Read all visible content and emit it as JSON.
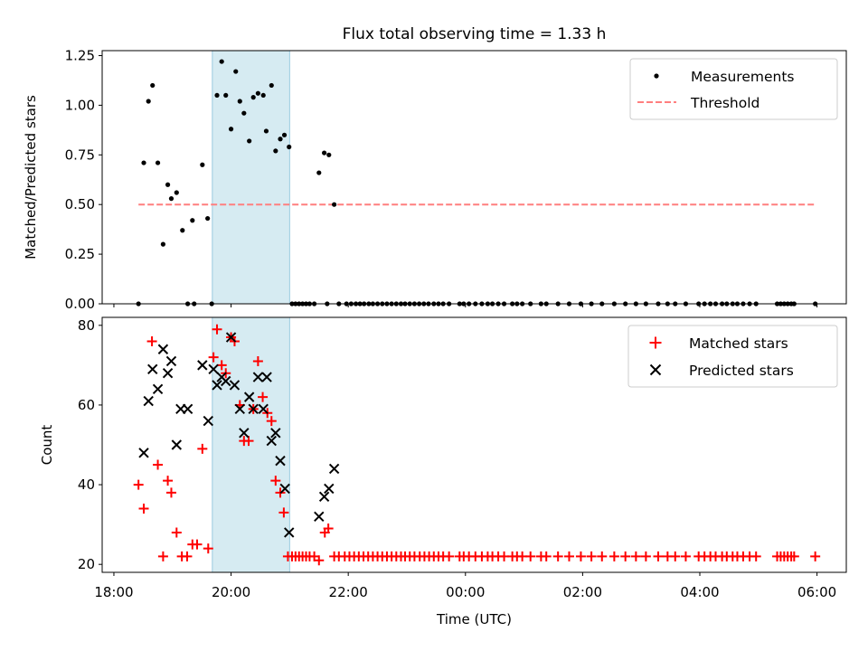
{
  "chart_data": {
    "title": "Flux total observing time = 1.33 h",
    "x_axis": {
      "label": "Time (UTC)",
      "unit": "hours since 18:00",
      "range": [
        -0.2,
        12.5
      ],
      "ticks": [
        {
          "value": 0,
          "label": "18:00"
        },
        {
          "value": 2,
          "label": "20:00"
        },
        {
          "value": 4,
          "label": "22:00"
        },
        {
          "value": 6,
          "label": "00:00"
        },
        {
          "value": 8,
          "label": "02:00"
        },
        {
          "value": 10,
          "label": "04:00"
        },
        {
          "value": 12,
          "label": "06:00"
        }
      ]
    },
    "highlight_span": {
      "x_start": 1.68,
      "x_end": 3.0,
      "color": "#add8e6"
    },
    "top_panel": {
      "type": "scatter",
      "ylabel": "Matched/Predicted stars",
      "ylim": [
        0,
        1.275
      ],
      "yticks": [
        "0.00",
        "0.25",
        "0.50",
        "0.75",
        "1.00",
        "1.25"
      ],
      "legend": [
        "Measurements",
        "Threshold"
      ],
      "threshold": {
        "value": 0.5,
        "x_start": 0.42,
        "x_end": 11.96,
        "color": "#ff7f7f"
      },
      "measurements": [
        [
          0.42,
          0.0
        ],
        [
          0.51,
          0.71
        ],
        [
          0.59,
          1.02
        ],
        [
          0.66,
          1.1
        ],
        [
          0.75,
          0.71
        ],
        [
          0.84,
          0.3
        ],
        [
          0.92,
          0.6
        ],
        [
          0.98,
          0.53
        ],
        [
          1.07,
          0.56
        ],
        [
          1.17,
          0.37
        ],
        [
          1.26,
          0.0
        ],
        [
          1.34,
          0.42
        ],
        [
          1.37,
          0.0
        ],
        [
          1.51,
          0.7
        ],
        [
          1.6,
          0.43
        ],
        [
          1.67,
          0.0
        ],
        [
          1.76,
          1.05
        ],
        [
          1.84,
          1.22
        ],
        [
          1.91,
          1.05
        ],
        [
          2.0,
          0.88
        ],
        [
          2.08,
          1.17
        ],
        [
          2.15,
          1.02
        ],
        [
          2.22,
          0.96
        ],
        [
          2.31,
          0.82
        ],
        [
          2.38,
          1.04
        ],
        [
          2.46,
          1.06
        ],
        [
          2.55,
          1.05
        ],
        [
          2.6,
          0.87
        ],
        [
          2.69,
          1.1
        ],
        [
          2.76,
          0.77
        ],
        [
          2.84,
          0.83
        ],
        [
          2.91,
          0.85
        ],
        [
          2.99,
          0.79
        ],
        [
          3.04,
          0.0
        ],
        [
          3.1,
          0.0
        ],
        [
          3.16,
          0.0
        ],
        [
          3.22,
          0.0
        ],
        [
          3.28,
          0.0
        ],
        [
          3.34,
          0.0
        ],
        [
          3.42,
          0.0
        ],
        [
          3.5,
          0.66
        ],
        [
          3.59,
          0.76
        ],
        [
          3.64,
          0.0
        ],
        [
          3.67,
          0.75
        ],
        [
          3.76,
          0.5
        ],
        [
          3.84,
          0.0
        ],
        [
          3.97,
          0.0
        ],
        [
          4.05,
          0.0
        ],
        [
          4.13,
          0.0
        ],
        [
          4.2,
          0.0
        ],
        [
          4.27,
          0.0
        ],
        [
          4.35,
          0.0
        ],
        [
          4.42,
          0.0
        ],
        [
          4.5,
          0.0
        ],
        [
          4.58,
          0.0
        ],
        [
          4.66,
          0.0
        ],
        [
          4.74,
          0.0
        ],
        [
          4.82,
          0.0
        ],
        [
          4.9,
          0.0
        ],
        [
          4.97,
          0.0
        ],
        [
          5.05,
          0.0
        ],
        [
          5.13,
          0.0
        ],
        [
          5.21,
          0.0
        ],
        [
          5.29,
          0.0
        ],
        [
          5.37,
          0.0
        ],
        [
          5.46,
          0.0
        ],
        [
          5.54,
          0.0
        ],
        [
          5.62,
          0.0
        ],
        [
          5.72,
          0.0
        ],
        [
          5.9,
          0.0
        ],
        [
          5.97,
          0.0
        ],
        [
          6.06,
          0.0
        ],
        [
          6.17,
          0.0
        ],
        [
          6.28,
          0.0
        ],
        [
          6.38,
          0.0
        ],
        [
          6.46,
          0.0
        ],
        [
          6.56,
          0.0
        ],
        [
          6.66,
          0.0
        ],
        [
          6.8,
          0.0
        ],
        [
          6.88,
          0.0
        ],
        [
          6.97,
          0.0
        ],
        [
          7.11,
          0.0
        ],
        [
          7.29,
          0.0
        ],
        [
          7.38,
          0.0
        ],
        [
          7.58,
          0.0
        ],
        [
          7.77,
          0.0
        ],
        [
          7.97,
          0.0
        ],
        [
          8.15,
          0.0
        ],
        [
          8.33,
          0.0
        ],
        [
          8.54,
          0.0
        ],
        [
          8.73,
          0.0
        ],
        [
          8.91,
          0.0
        ],
        [
          9.08,
          0.0
        ],
        [
          9.29,
          0.0
        ],
        [
          9.45,
          0.0
        ],
        [
          9.58,
          0.0
        ],
        [
          9.76,
          0.0
        ],
        [
          9.98,
          0.0
        ],
        [
          10.08,
          0.0
        ],
        [
          10.18,
          0.0
        ],
        [
          10.27,
          0.0
        ],
        [
          10.38,
          0.0
        ],
        [
          10.46,
          0.0
        ],
        [
          10.56,
          0.0
        ],
        [
          10.64,
          0.0
        ],
        [
          10.74,
          0.0
        ],
        [
          10.85,
          0.0
        ],
        [
          10.96,
          0.0
        ],
        [
          11.32,
          0.0
        ],
        [
          11.38,
          0.0
        ],
        [
          11.44,
          0.0
        ],
        [
          11.5,
          0.0
        ],
        [
          11.56,
          0.0
        ],
        [
          11.61,
          0.0
        ],
        [
          11.97,
          0.0
        ]
      ]
    },
    "bottom_panel": {
      "type": "scatter",
      "ylabel": "Count",
      "ylim": [
        18,
        82
      ],
      "yticks": [
        "20",
        "40",
        "60",
        "80"
      ],
      "legend": [
        "Matched stars",
        "Predicted stars"
      ],
      "series": [
        {
          "name": "Matched stars",
          "marker": "plus",
          "color": "#ff0000",
          "points": [
            [
              0.42,
              40
            ],
            [
              0.51,
              34
            ],
            [
              0.65,
              76
            ],
            [
              0.75,
              45
            ],
            [
              0.84,
              22
            ],
            [
              0.92,
              41
            ],
            [
              0.98,
              38
            ],
            [
              1.07,
              28
            ],
            [
              1.16,
              22
            ],
            [
              1.25,
              22
            ],
            [
              1.34,
              25
            ],
            [
              1.42,
              25
            ],
            [
              1.51,
              49
            ],
            [
              1.61,
              24
            ],
            [
              1.7,
              72
            ],
            [
              1.76,
              79
            ],
            [
              1.84,
              70
            ],
            [
              1.91,
              68
            ],
            [
              2.0,
              77
            ],
            [
              2.06,
              76
            ],
            [
              2.15,
              60
            ],
            [
              2.22,
              51
            ],
            [
              2.3,
              51
            ],
            [
              2.38,
              59
            ],
            [
              2.46,
              71
            ],
            [
              2.54,
              62
            ],
            [
              2.62,
              58
            ],
            [
              2.69,
              56
            ],
            [
              2.76,
              41
            ],
            [
              2.84,
              38
            ],
            [
              2.9,
              33
            ],
            [
              2.97,
              22
            ],
            [
              3.04,
              22
            ],
            [
              3.1,
              22
            ],
            [
              3.16,
              22
            ],
            [
              3.22,
              22
            ],
            [
              3.28,
              22
            ],
            [
              3.34,
              22
            ],
            [
              3.42,
              22
            ],
            [
              3.5,
              21
            ],
            [
              3.6,
              28
            ],
            [
              3.66,
              29
            ],
            [
              3.76,
              22
            ],
            [
              3.84,
              22
            ],
            [
              3.94,
              22
            ],
            [
              4.02,
              22
            ],
            [
              4.1,
              22
            ],
            [
              4.18,
              22
            ],
            [
              4.26,
              22
            ],
            [
              4.34,
              22
            ],
            [
              4.42,
              22
            ],
            [
              4.5,
              22
            ],
            [
              4.58,
              22
            ],
            [
              4.66,
              22
            ],
            [
              4.74,
              22
            ],
            [
              4.82,
              22
            ],
            [
              4.9,
              22
            ],
            [
              4.97,
              22
            ],
            [
              5.05,
              22
            ],
            [
              5.13,
              22
            ],
            [
              5.22,
              22
            ],
            [
              5.3,
              22
            ],
            [
              5.38,
              22
            ],
            [
              5.46,
              22
            ],
            [
              5.54,
              22
            ],
            [
              5.62,
              22
            ],
            [
              5.72,
              22
            ],
            [
              5.9,
              22
            ],
            [
              5.97,
              22
            ],
            [
              6.06,
              22
            ],
            [
              6.17,
              22
            ],
            [
              6.28,
              22
            ],
            [
              6.38,
              22
            ],
            [
              6.46,
              22
            ],
            [
              6.56,
              22
            ],
            [
              6.66,
              22
            ],
            [
              6.8,
              22
            ],
            [
              6.88,
              22
            ],
            [
              6.97,
              22
            ],
            [
              7.11,
              22
            ],
            [
              7.29,
              22
            ],
            [
              7.38,
              22
            ],
            [
              7.58,
              22
            ],
            [
              7.77,
              22
            ],
            [
              7.97,
              22
            ],
            [
              8.15,
              22
            ],
            [
              8.33,
              22
            ],
            [
              8.54,
              22
            ],
            [
              8.73,
              22
            ],
            [
              8.91,
              22
            ],
            [
              9.08,
              22
            ],
            [
              9.29,
              22
            ],
            [
              9.45,
              22
            ],
            [
              9.58,
              22
            ],
            [
              9.76,
              22
            ],
            [
              9.98,
              22
            ],
            [
              10.08,
              22
            ],
            [
              10.18,
              22
            ],
            [
              10.27,
              22
            ],
            [
              10.38,
              22
            ],
            [
              10.46,
              22
            ],
            [
              10.56,
              22
            ],
            [
              10.64,
              22
            ],
            [
              10.74,
              22
            ],
            [
              10.85,
              22
            ],
            [
              10.96,
              22
            ],
            [
              11.32,
              22
            ],
            [
              11.38,
              22
            ],
            [
              11.44,
              22
            ],
            [
              11.5,
              22
            ],
            [
              11.56,
              22
            ],
            [
              11.61,
              22
            ],
            [
              11.97,
              22
            ]
          ]
        },
        {
          "name": "Predicted stars",
          "marker": "x",
          "color": "#000000",
          "points": [
            [
              0.51,
              48
            ],
            [
              0.59,
              61
            ],
            [
              0.66,
              69
            ],
            [
              0.75,
              64
            ],
            [
              0.84,
              74
            ],
            [
              0.92,
              68
            ],
            [
              0.98,
              71
            ],
            [
              1.07,
              50
            ],
            [
              1.14,
              59
            ],
            [
              1.26,
              59
            ],
            [
              1.51,
              70
            ],
            [
              1.61,
              56
            ],
            [
              1.7,
              69
            ],
            [
              1.76,
              65
            ],
            [
              1.84,
              67
            ],
            [
              1.91,
              66
            ],
            [
              2.0,
              77
            ],
            [
              2.06,
              65
            ],
            [
              2.15,
              59
            ],
            [
              2.22,
              53
            ],
            [
              2.31,
              62
            ],
            [
              2.38,
              59
            ],
            [
              2.46,
              67
            ],
            [
              2.55,
              59
            ],
            [
              2.61,
              67
            ],
            [
              2.69,
              51
            ],
            [
              2.76,
              53
            ],
            [
              2.84,
              46
            ],
            [
              2.92,
              39
            ],
            [
              2.99,
              28
            ],
            [
              3.5,
              32
            ],
            [
              3.59,
              37
            ],
            [
              3.67,
              39
            ],
            [
              3.76,
              44
            ]
          ]
        }
      ]
    }
  }
}
